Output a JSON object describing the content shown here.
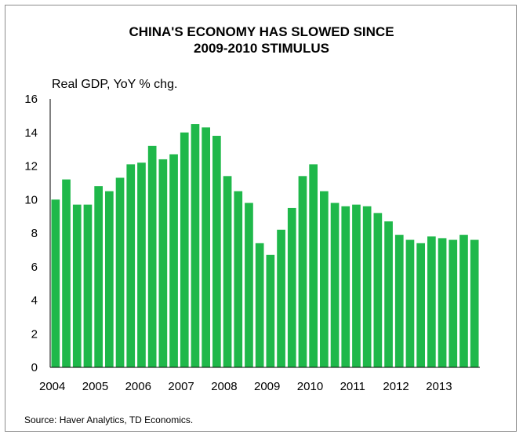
{
  "chart_data": {
    "type": "bar",
    "title_line1": "CHINA'S ECONOMY HAS SLOWED SINCE",
    "title_line2": "2009-2010 STIMULUS",
    "ylabel": "Real GDP, YoY % chg.",
    "xlabel": "",
    "source": "Source: Haver Analytics, TD Economics.",
    "bar_color": "#1fb84a",
    "ylim": [
      0,
      16
    ],
    "yticks": [
      "0",
      "2",
      "4",
      "6",
      "8",
      "10",
      "12",
      "14",
      "16"
    ],
    "year_labels": [
      "2004",
      "2005",
      "2006",
      "2007",
      "2008",
      "2009",
      "2010",
      "2011",
      "2012",
      "2013"
    ],
    "categories": [
      "2004 Q1",
      "2004 Q2",
      "2004 Q3",
      "2004 Q4",
      "2005 Q1",
      "2005 Q2",
      "2005 Q3",
      "2005 Q4",
      "2006 Q1",
      "2006 Q2",
      "2006 Q3",
      "2006 Q4",
      "2007 Q1",
      "2007 Q2",
      "2007 Q3",
      "2007 Q4",
      "2008 Q1",
      "2008 Q2",
      "2008 Q3",
      "2008 Q4",
      "2009 Q1",
      "2009 Q2",
      "2009 Q3",
      "2009 Q4",
      "2010 Q1",
      "2010 Q2",
      "2010 Q3",
      "2010 Q4",
      "2011 Q1",
      "2011 Q2",
      "2011 Q3",
      "2011 Q4",
      "2012 Q1",
      "2012 Q2",
      "2012 Q3",
      "2012 Q4",
      "2013 Q1",
      "2013 Q2",
      "2013 Q3",
      "2013 Q4"
    ],
    "values": [
      10.0,
      11.2,
      9.7,
      9.7,
      10.8,
      10.5,
      11.3,
      12.1,
      12.2,
      13.2,
      12.4,
      12.7,
      14.0,
      14.5,
      14.3,
      13.8,
      11.4,
      10.5,
      9.8,
      7.4,
      6.7,
      8.2,
      9.5,
      11.4,
      12.1,
      10.5,
      9.8,
      9.6,
      9.7,
      9.6,
      9.2,
      8.7,
      7.9,
      7.6,
      7.4,
      7.8,
      7.7,
      7.6,
      7.9,
      7.6
    ]
  }
}
